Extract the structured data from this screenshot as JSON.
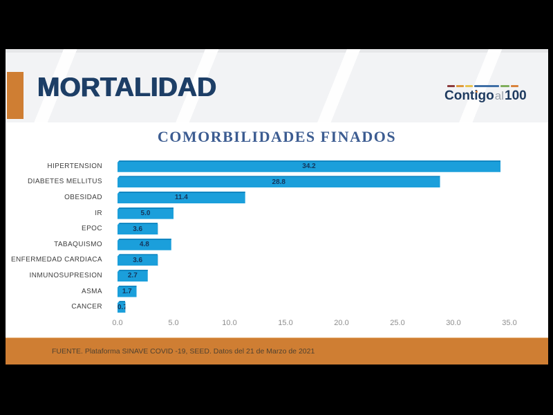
{
  "header": {
    "title": "MORTALIDAD",
    "logo": {
      "part1": "Cont",
      "part2": "igo",
      "part3": "al",
      "part4": "100",
      "dashes": [
        {
          "color": "#8c3a3c",
          "width": 11
        },
        {
          "color": "#df9a3b",
          "width": 11
        },
        {
          "color": "#e8c44f",
          "width": 11
        },
        {
          "color": "#3f6fa6",
          "width": 36
        },
        {
          "color": "#7fae5c",
          "width": 13
        },
        {
          "color": "#d9823b",
          "width": 11
        }
      ]
    }
  },
  "chart_data": {
    "type": "bar",
    "orientation": "horizontal",
    "title": "COMORBILIDADES FINADOS",
    "categories": [
      "HIPERTENSION",
      "DIABETES MELLITUS",
      "OBESIDAD",
      "IR",
      "EPOC",
      "TABAQUISMO",
      "ENFERMEDAD CARDIACA",
      "INMUNOSUPRESION",
      "ASMA",
      "CANCER"
    ],
    "values": [
      34.2,
      28.8,
      11.4,
      5.0,
      3.6,
      4.8,
      3.6,
      2.7,
      1.7,
      0.7
    ],
    "value_labels": [
      "34.2",
      "28.8",
      "11.4",
      "5.0",
      "3.6",
      "4.8",
      "3.6",
      "2.7",
      "1.7",
      "0.7"
    ],
    "x_ticks": [
      "0.0",
      "5.0",
      "10.0",
      "15.0",
      "20.0",
      "25.0",
      "30.0",
      "35.0"
    ],
    "xlim": [
      0,
      35
    ],
    "grid": false,
    "legend": false,
    "bar_color": "#1b9fdb",
    "bar_side_color": "#0d77ad",
    "value_label_color": "#15355b"
  },
  "footer": {
    "source": "FUENTE. Plataforma SINAVE COVID -19, SEED. Datos del 21 de Marzo de 2021"
  },
  "colors": {
    "frame": "#000000",
    "slide_bg": "#ffffff",
    "header_bg": "#f2f3f5",
    "accent_orange": "#cf7e33",
    "title_navy": "#1d3e66",
    "chart_title_blue": "#3c5c91"
  }
}
